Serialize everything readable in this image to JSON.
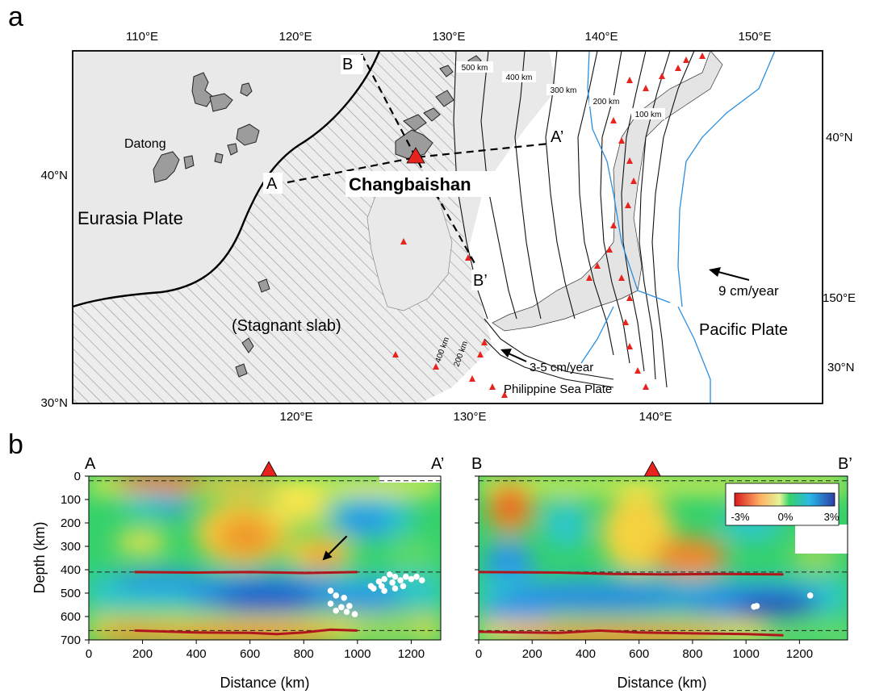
{
  "figure": {
    "panel_a": "a",
    "panel_b": "b"
  },
  "map": {
    "top_lon_ticks": [
      "110°E",
      "120°E",
      "130°E",
      "140°E",
      "150°E"
    ],
    "bottom_lon_ticks": [
      "120°E",
      "130°E",
      "140°E"
    ],
    "left_lat_ticks": [
      "40°N",
      "30°N"
    ],
    "right_ticks": [
      "40°N",
      "150°E",
      "30°N"
    ],
    "labels": {
      "datong": "Datong",
      "eurasia": "Eurasia Plate",
      "changbaishan": "Changbaishan",
      "stagnant": "(Stagnant slab)",
      "pacific": "Pacific Plate",
      "philippine": "Philippine Sea Plate",
      "pac_rate": "9 cm/year",
      "phs_rate": "3-5 cm/year",
      "pt_A": "A",
      "pt_A2": "A’",
      "pt_B": "B",
      "pt_B2": "B’"
    },
    "contours": [
      "500 km",
      "400 km",
      "300 km",
      "200 km",
      "100 km"
    ],
    "phs_contours": [
      "400 km",
      "200 km"
    ],
    "colors": {
      "land": "#e9e9e9",
      "volcano": "#e8221c",
      "trench": "#2b8fe0",
      "profile": "#000000"
    }
  },
  "chart_data": [
    {
      "type": "heatmap",
      "title": "A – A’",
      "left_label": "A",
      "right_label": "A’",
      "xlabel": "Distance (km)",
      "ylabel": "Depth (km)",
      "xlim": [
        0,
        1310
      ],
      "ylim": [
        700,
        0
      ],
      "xticks": [
        "0",
        "200",
        "400",
        "600",
        "800",
        "1000",
        "1200"
      ],
      "yticks": [
        "0",
        "100",
        "200",
        "300",
        "400",
        "500",
        "600",
        "700"
      ],
      "volcano_x": 670,
      "arrow_target": [
        870,
        360
      ],
      "discontinuity_410": [
        [
          170,
          410
        ],
        [
          400,
          412
        ],
        [
          600,
          410
        ],
        [
          800,
          414
        ],
        [
          1000,
          410
        ]
      ],
      "discontinuity_660": [
        [
          170,
          660
        ],
        [
          400,
          668
        ],
        [
          600,
          670
        ],
        [
          700,
          675
        ],
        [
          800,
          668
        ],
        [
          900,
          656
        ],
        [
          1000,
          660
        ]
      ],
      "events": [
        [
          900,
          490
        ],
        [
          920,
          510
        ],
        [
          950,
          520
        ],
        [
          900,
          545
        ],
        [
          940,
          560
        ],
        [
          970,
          555
        ],
        [
          920,
          575
        ],
        [
          960,
          580
        ],
        [
          990,
          590
        ],
        [
          1050,
          470
        ],
        [
          1080,
          450
        ],
        [
          1100,
          440
        ],
        [
          1120,
          420
        ],
        [
          1140,
          430
        ],
        [
          1160,
          445
        ],
        [
          1180,
          430
        ],
        [
          1200,
          440
        ],
        [
          1220,
          430
        ],
        [
          1240,
          445
        ],
        [
          1090,
          470
        ],
        [
          1130,
          455
        ],
        [
          1170,
          470
        ],
        [
          1060,
          480
        ],
        [
          1100,
          490
        ],
        [
          1140,
          480
        ]
      ]
    },
    {
      "type": "heatmap",
      "title": "B – B’",
      "left_label": "B",
      "right_label": "B’",
      "xlabel": "Distance (km)",
      "ylabel": "",
      "xlim": [
        0,
        1380
      ],
      "ylim": [
        700,
        0
      ],
      "xticks": [
        "0",
        "200",
        "400",
        "600",
        "800",
        "1000",
        "1200"
      ],
      "volcano_x": 650,
      "colorbar": {
        "min_label": "-3%",
        "mid_label": "0%",
        "max_label": "3%"
      },
      "discontinuity_410": [
        [
          0,
          410
        ],
        [
          300,
          412
        ],
        [
          500,
          418
        ],
        [
          700,
          420
        ],
        [
          900,
          418
        ],
        [
          1140,
          420
        ]
      ],
      "discontinuity_660": [
        [
          0,
          665
        ],
        [
          300,
          670
        ],
        [
          450,
          660
        ],
        [
          600,
          668
        ],
        [
          800,
          672
        ],
        [
          1000,
          675
        ],
        [
          1140,
          680
        ]
      ],
      "events": [
        [
          1030,
          558
        ],
        [
          1040,
          555
        ],
        [
          1240,
          510
        ]
      ]
    }
  ]
}
